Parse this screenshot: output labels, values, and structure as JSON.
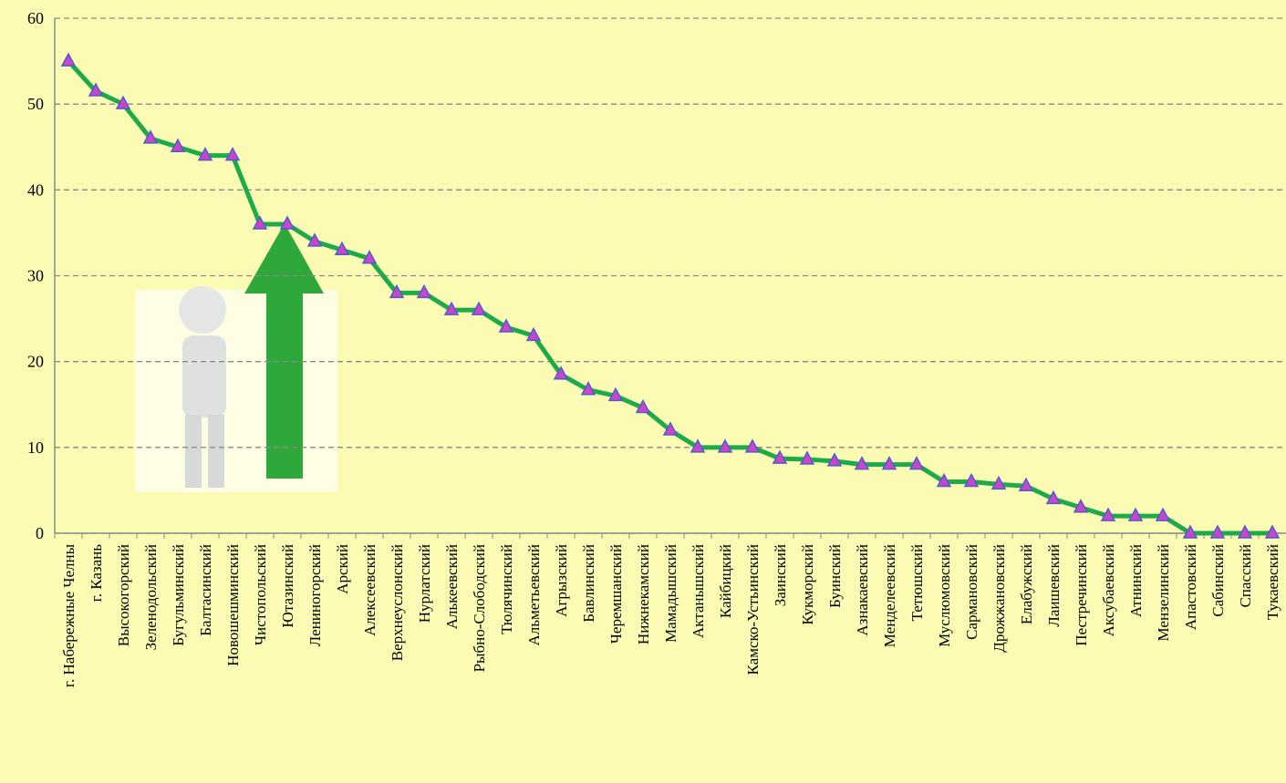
{
  "chart_data": {
    "type": "line",
    "categories": [
      "г. Набережные Челны",
      "г. Казань",
      "Высокогорский",
      "Зеленодольский",
      "Бугульминский",
      "Балтасинский",
      "Новошешминский",
      "Чистопольский",
      "Ютазинский",
      "Лениногорский",
      "Арский",
      "Алексеевский",
      "Верхнеуслонский",
      "Нурлатский",
      "Алькеевский",
      "Рыбно-Слободский",
      "Тюлячинский",
      "Альметьевский",
      "Агрызский",
      "Бавлинский",
      "Черемшанский",
      "Нижнекамский",
      "Мамадышский",
      "Актанышский",
      "Кайбицкий",
      "Камско-Устьинский",
      "Заинский",
      "Кукморский",
      "Буинский",
      "Азнакаевский",
      "Менделеевский",
      "Тетюшский",
      "Муслюмовский",
      "Сармановский",
      "Дрожжановский",
      "Елабужский",
      "Лаишевский",
      "Пестречинский",
      "Аксубаевский",
      "Атнинский",
      "Мензелинский",
      "Апастовский",
      "Сабинский",
      "Спасский",
      "Тукаевский"
    ],
    "values": [
      55,
      51.5,
      50,
      46,
      45,
      44,
      44,
      36,
      36,
      34,
      33,
      32,
      28,
      28,
      26,
      26,
      24,
      23,
      18.5,
      16.7,
      16,
      14.6,
      12,
      10,
      10,
      10,
      8.7,
      8.6,
      8.4,
      8,
      8,
      8,
      6,
      6,
      5.7,
      5.5,
      4,
      3,
      2,
      2,
      2,
      0,
      0,
      0,
      0
    ],
    "color": "#1faa4a",
    "marker_color": "#cc44cc",
    "ylim": [
      0,
      60
    ],
    "yticks": [
      0,
      10,
      20,
      30,
      40,
      50,
      60
    ],
    "grid": true
  }
}
